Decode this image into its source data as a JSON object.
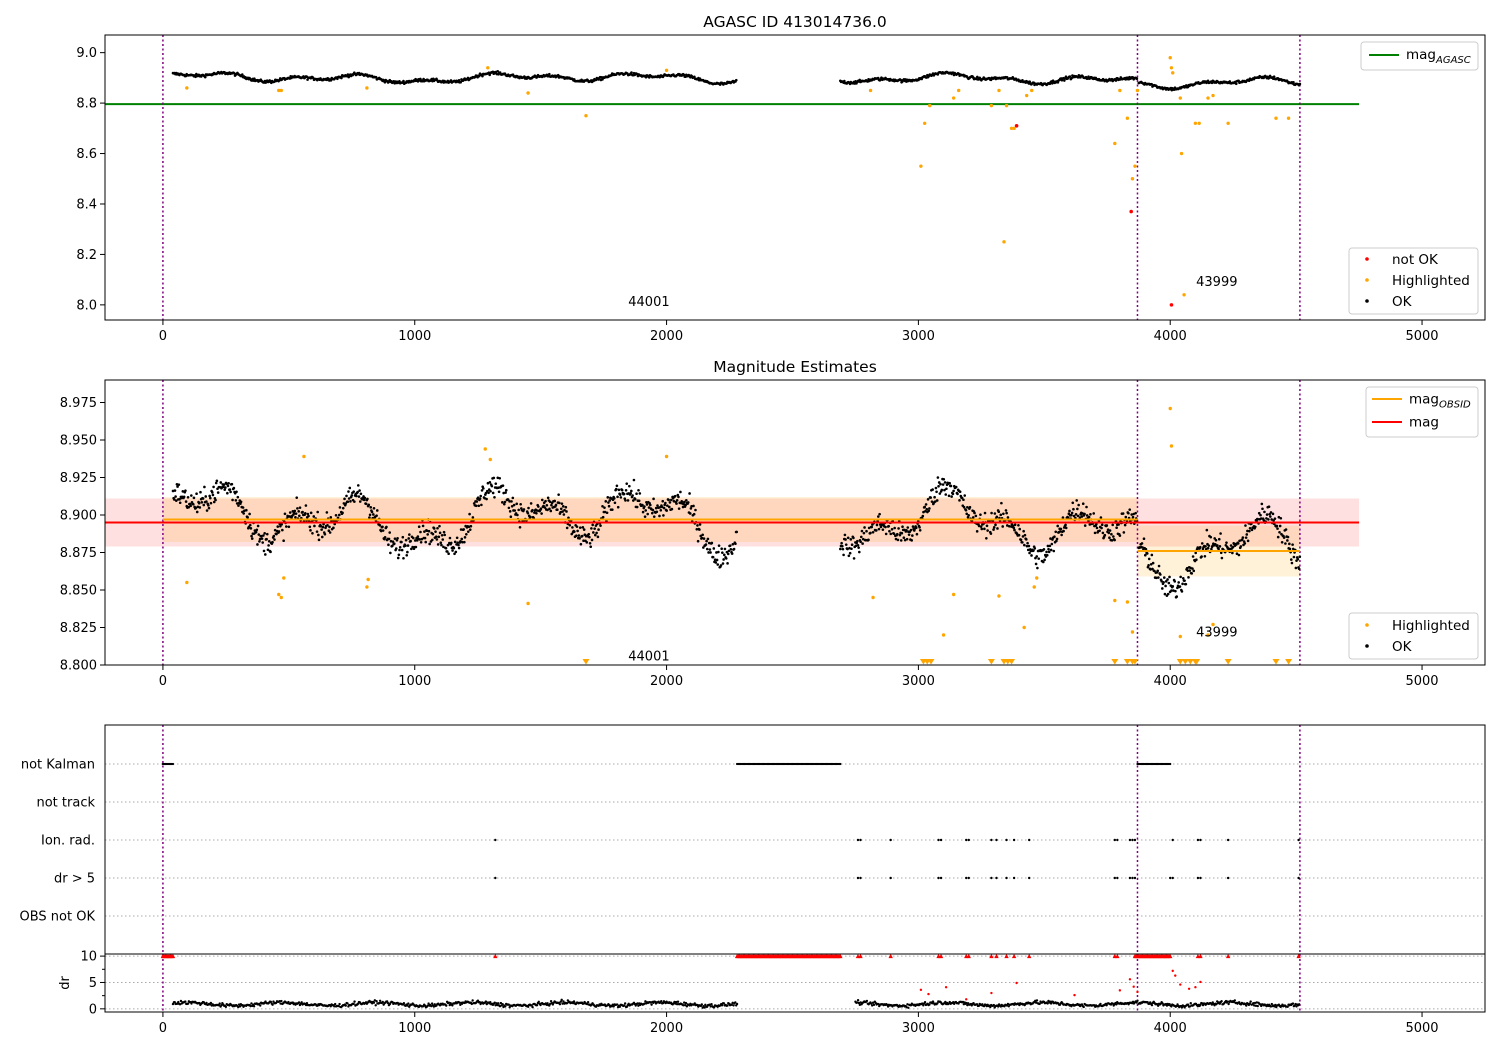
{
  "chart_data": [
    {
      "type": "scatter",
      "title": "AGASC ID 413014736.0",
      "xlim": [
        -230,
        5250
      ],
      "ylim": [
        7.94,
        9.07
      ],
      "x_ticks": [
        0,
        1000,
        2000,
        3000,
        4000,
        5000
      ],
      "y_ticks": [
        8.0,
        8.2,
        8.4,
        8.6,
        8.8,
        9.0
      ],
      "y_tick_labels": [
        "8.0",
        "8.2",
        "8.4",
        "8.6",
        "8.8",
        "9.0"
      ],
      "obsid_boundaries": [
        0,
        3870,
        4515
      ],
      "obsid_labels": [
        {
          "text": "44001",
          "x": 1930,
          "y": 7.995
        },
        {
          "text": "43999",
          "x": 4185,
          "y": 8.075
        }
      ],
      "reference_line": {
        "name": "mag",
        "subscript": "AGASC",
        "y": 8.796,
        "x_range": [
          -230,
          4750
        ],
        "color": "#008000"
      },
      "ok_segments": [
        {
          "x": [
            40,
            2280
          ],
          "base": 8.9
        },
        {
          "x": [
            2690,
            3870
          ],
          "base": 8.895
        },
        {
          "x": [
            3875,
            4515
          ],
          "base": 8.88
        }
      ],
      "highlighted_points": [
        [
          95,
          8.86
        ],
        [
          460,
          8.85
        ],
        [
          470,
          8.85
        ],
        [
          810,
          8.86
        ],
        [
          1290,
          8.94
        ],
        [
          1450,
          8.84
        ],
        [
          1680,
          8.75
        ],
        [
          2000,
          8.93
        ],
        [
          2810,
          8.85
        ],
        [
          3010,
          8.55
        ],
        [
          3025,
          8.72
        ],
        [
          3045,
          8.79
        ],
        [
          3140,
          8.82
        ],
        [
          3160,
          8.85
        ],
        [
          3290,
          8.79
        ],
        [
          3320,
          8.85
        ],
        [
          3340,
          8.25
        ],
        [
          3350,
          8.79
        ],
        [
          3370,
          8.7
        ],
        [
          3380,
          8.7
        ],
        [
          3430,
          8.83
        ],
        [
          3450,
          8.85
        ],
        [
          3780,
          8.64
        ],
        [
          3800,
          8.85
        ],
        [
          3830,
          8.74
        ],
        [
          3850,
          8.5
        ],
        [
          3860,
          8.55
        ],
        [
          3870,
          8.85
        ],
        [
          4000,
          8.98
        ],
        [
          4005,
          8.94
        ],
        [
          4010,
          8.92
        ],
        [
          4040,
          8.82
        ],
        [
          4045,
          8.6
        ],
        [
          4055,
          8.04
        ],
        [
          4100,
          8.72
        ],
        [
          4115,
          8.72
        ],
        [
          4150,
          8.82
        ],
        [
          4170,
          8.83
        ],
        [
          4230,
          8.72
        ],
        [
          4420,
          8.74
        ],
        [
          4470,
          8.74
        ]
      ],
      "not_ok_points": [
        [
          3390,
          8.71
        ],
        [
          3845,
          8.37
        ],
        [
          4005,
          8.0
        ]
      ],
      "legend_top": [
        {
          "label": "mag",
          "subscript": "AGASC",
          "color": "#008000"
        }
      ],
      "legend_bottom": [
        {
          "label": "not OK",
          "color": "#ff0000"
        },
        {
          "label": "Highlighted",
          "color": "#ffa500"
        },
        {
          "label": "OK",
          "color": "#000000"
        }
      ]
    },
    {
      "type": "scatter",
      "title": "Magnitude Estimates",
      "xlim": [
        -230,
        5250
      ],
      "ylim": [
        8.8,
        8.99
      ],
      "x_ticks": [
        0,
        1000,
        2000,
        3000,
        4000,
        5000
      ],
      "y_ticks": [
        8.8,
        8.825,
        8.85,
        8.875,
        8.9,
        8.925,
        8.95,
        8.975
      ],
      "y_tick_labels": [
        "8.800",
        "8.825",
        "8.850",
        "8.875",
        "8.900",
        "8.925",
        "8.950",
        "8.975"
      ],
      "obsid_boundaries": [
        0,
        3870,
        4515
      ],
      "obsid_labels": [
        {
          "text": "44001",
          "x": 1930,
          "y": 8.803
        },
        {
          "text": "43999",
          "x": 4185,
          "y": 8.819
        }
      ],
      "mag_line": {
        "name": "mag",
        "y": 8.895,
        "band": [
          8.879,
          8.911
        ],
        "x_range": [
          -230,
          4750
        ],
        "color": "#ff0000"
      },
      "mag_obsid_segments": [
        {
          "x": [
            0,
            3870
          ],
          "y": 8.897,
          "band": [
            8.882,
            8.912
          ]
        },
        {
          "x": [
            3870,
            4515
          ],
          "y": 8.876,
          "band": [
            8.859,
            8.893
          ]
        }
      ],
      "ok_segments": [
        {
          "x": [
            40,
            2280
          ],
          "base": 8.898
        },
        {
          "x": [
            2690,
            3870
          ],
          "base": 8.893
        },
        {
          "x": [
            3875,
            4515
          ],
          "base": 8.876
        }
      ],
      "highlighted_points": [
        [
          95,
          8.855
        ],
        [
          460,
          8.847
        ],
        [
          470,
          8.845
        ],
        [
          480,
          8.858
        ],
        [
          560,
          8.939
        ],
        [
          810,
          8.852
        ],
        [
          815,
          8.857
        ],
        [
          1280,
          8.944
        ],
        [
          1300,
          8.937
        ],
        [
          1450,
          8.841
        ],
        [
          2000,
          8.939
        ],
        [
          2820,
          8.845
        ],
        [
          3140,
          8.847
        ],
        [
          3100,
          8.82
        ],
        [
          3320,
          8.846
        ],
        [
          3420,
          8.825
        ],
        [
          3460,
          8.852
        ],
        [
          3470,
          8.858
        ],
        [
          3780,
          8.843
        ],
        [
          3830,
          8.842
        ],
        [
          3850,
          8.822
        ],
        [
          4000,
          8.971
        ],
        [
          4005,
          8.946
        ],
        [
          4040,
          8.819
        ],
        [
          4150,
          8.82
        ],
        [
          4170,
          8.827
        ]
      ],
      "below_range_markers": [
        1680,
        3020,
        3035,
        3050,
        3290,
        3340,
        3355,
        3370,
        3780,
        3830,
        3850,
        3860,
        4040,
        4060,
        4080,
        4100,
        4105,
        4230,
        4420,
        4470
      ],
      "legend_top": [
        {
          "label": "mag",
          "subscript": "OBSID",
          "color": "#ffa500"
        },
        {
          "label": "mag",
          "color": "#ff0000"
        }
      ],
      "legend_bottom": [
        {
          "label": "Highlighted",
          "color": "#ffa500"
        },
        {
          "label": "OK",
          "color": "#000000"
        }
      ]
    },
    {
      "type": "scatter",
      "xlim": [
        -230,
        5250
      ],
      "x_ticks": [
        0,
        1000,
        2000,
        3000,
        4000,
        5000
      ],
      "obsid_boundaries": [
        0,
        3870,
        4515
      ],
      "flag_rows": [
        "not Kalman",
        "not track",
        "Ion. rad.",
        "dr > 5",
        "OBS not OK"
      ],
      "flag_ranges": {
        "not Kalman": [
          [
            0,
            40
          ],
          [
            2280,
            2690
          ],
          [
            3870,
            4000
          ]
        ],
        "not track": [],
        "Ion. rad.": [],
        "dr > 5": [],
        "OBS not OK": []
      },
      "flag_points": {
        "Ion. rad.": [
          1320,
          2760,
          2770,
          2890,
          3080,
          3090,
          3190,
          3200,
          3290,
          3310,
          3350,
          3380,
          3440,
          3780,
          3790,
          3840,
          3850,
          3860,
          4010,
          4110,
          4120,
          4230,
          4510
        ],
        "dr > 5": [
          1320,
          2760,
          2770,
          2890,
          3080,
          3090,
          3190,
          3200,
          3290,
          3310,
          3350,
          3380,
          3440,
          3780,
          3790,
          3840,
          3850,
          3860,
          4000,
          4010,
          4110,
          4120,
          4230,
          4510
        ]
      },
      "dr_axis": {
        "ylabel": "dr",
        "ylim": [
          -0.6,
          10.4
        ],
        "y_ticks": [
          0,
          5,
          10
        ],
        "y_tick_labels": [
          "0",
          "5",
          "10"
        ]
      },
      "dr_clipped_x": [
        1320,
        2760,
        2770,
        2890,
        3080,
        3090,
        3190,
        3200,
        3290,
        3310,
        3350,
        3380,
        3440,
        3780,
        3790,
        4110,
        4120,
        4230,
        4510
      ],
      "dr_outliers": [
        [
          3010,
          3.6
        ],
        [
          3040,
          2.8
        ],
        [
          3110,
          4.1
        ],
        [
          3190,
          1.8
        ],
        [
          3290,
          3.0
        ],
        [
          3390,
          4.9
        ],
        [
          3620,
          2.6
        ],
        [
          3800,
          3.5
        ],
        [
          3840,
          5.6
        ],
        [
          3855,
          4.2
        ],
        [
          3870,
          3.2
        ],
        [
          4010,
          7.2
        ],
        [
          4020,
          6.3
        ],
        [
          4040,
          4.6
        ],
        [
          4075,
          3.8
        ],
        [
          4100,
          4.1
        ],
        [
          4120,
          5.1
        ]
      ]
    }
  ]
}
